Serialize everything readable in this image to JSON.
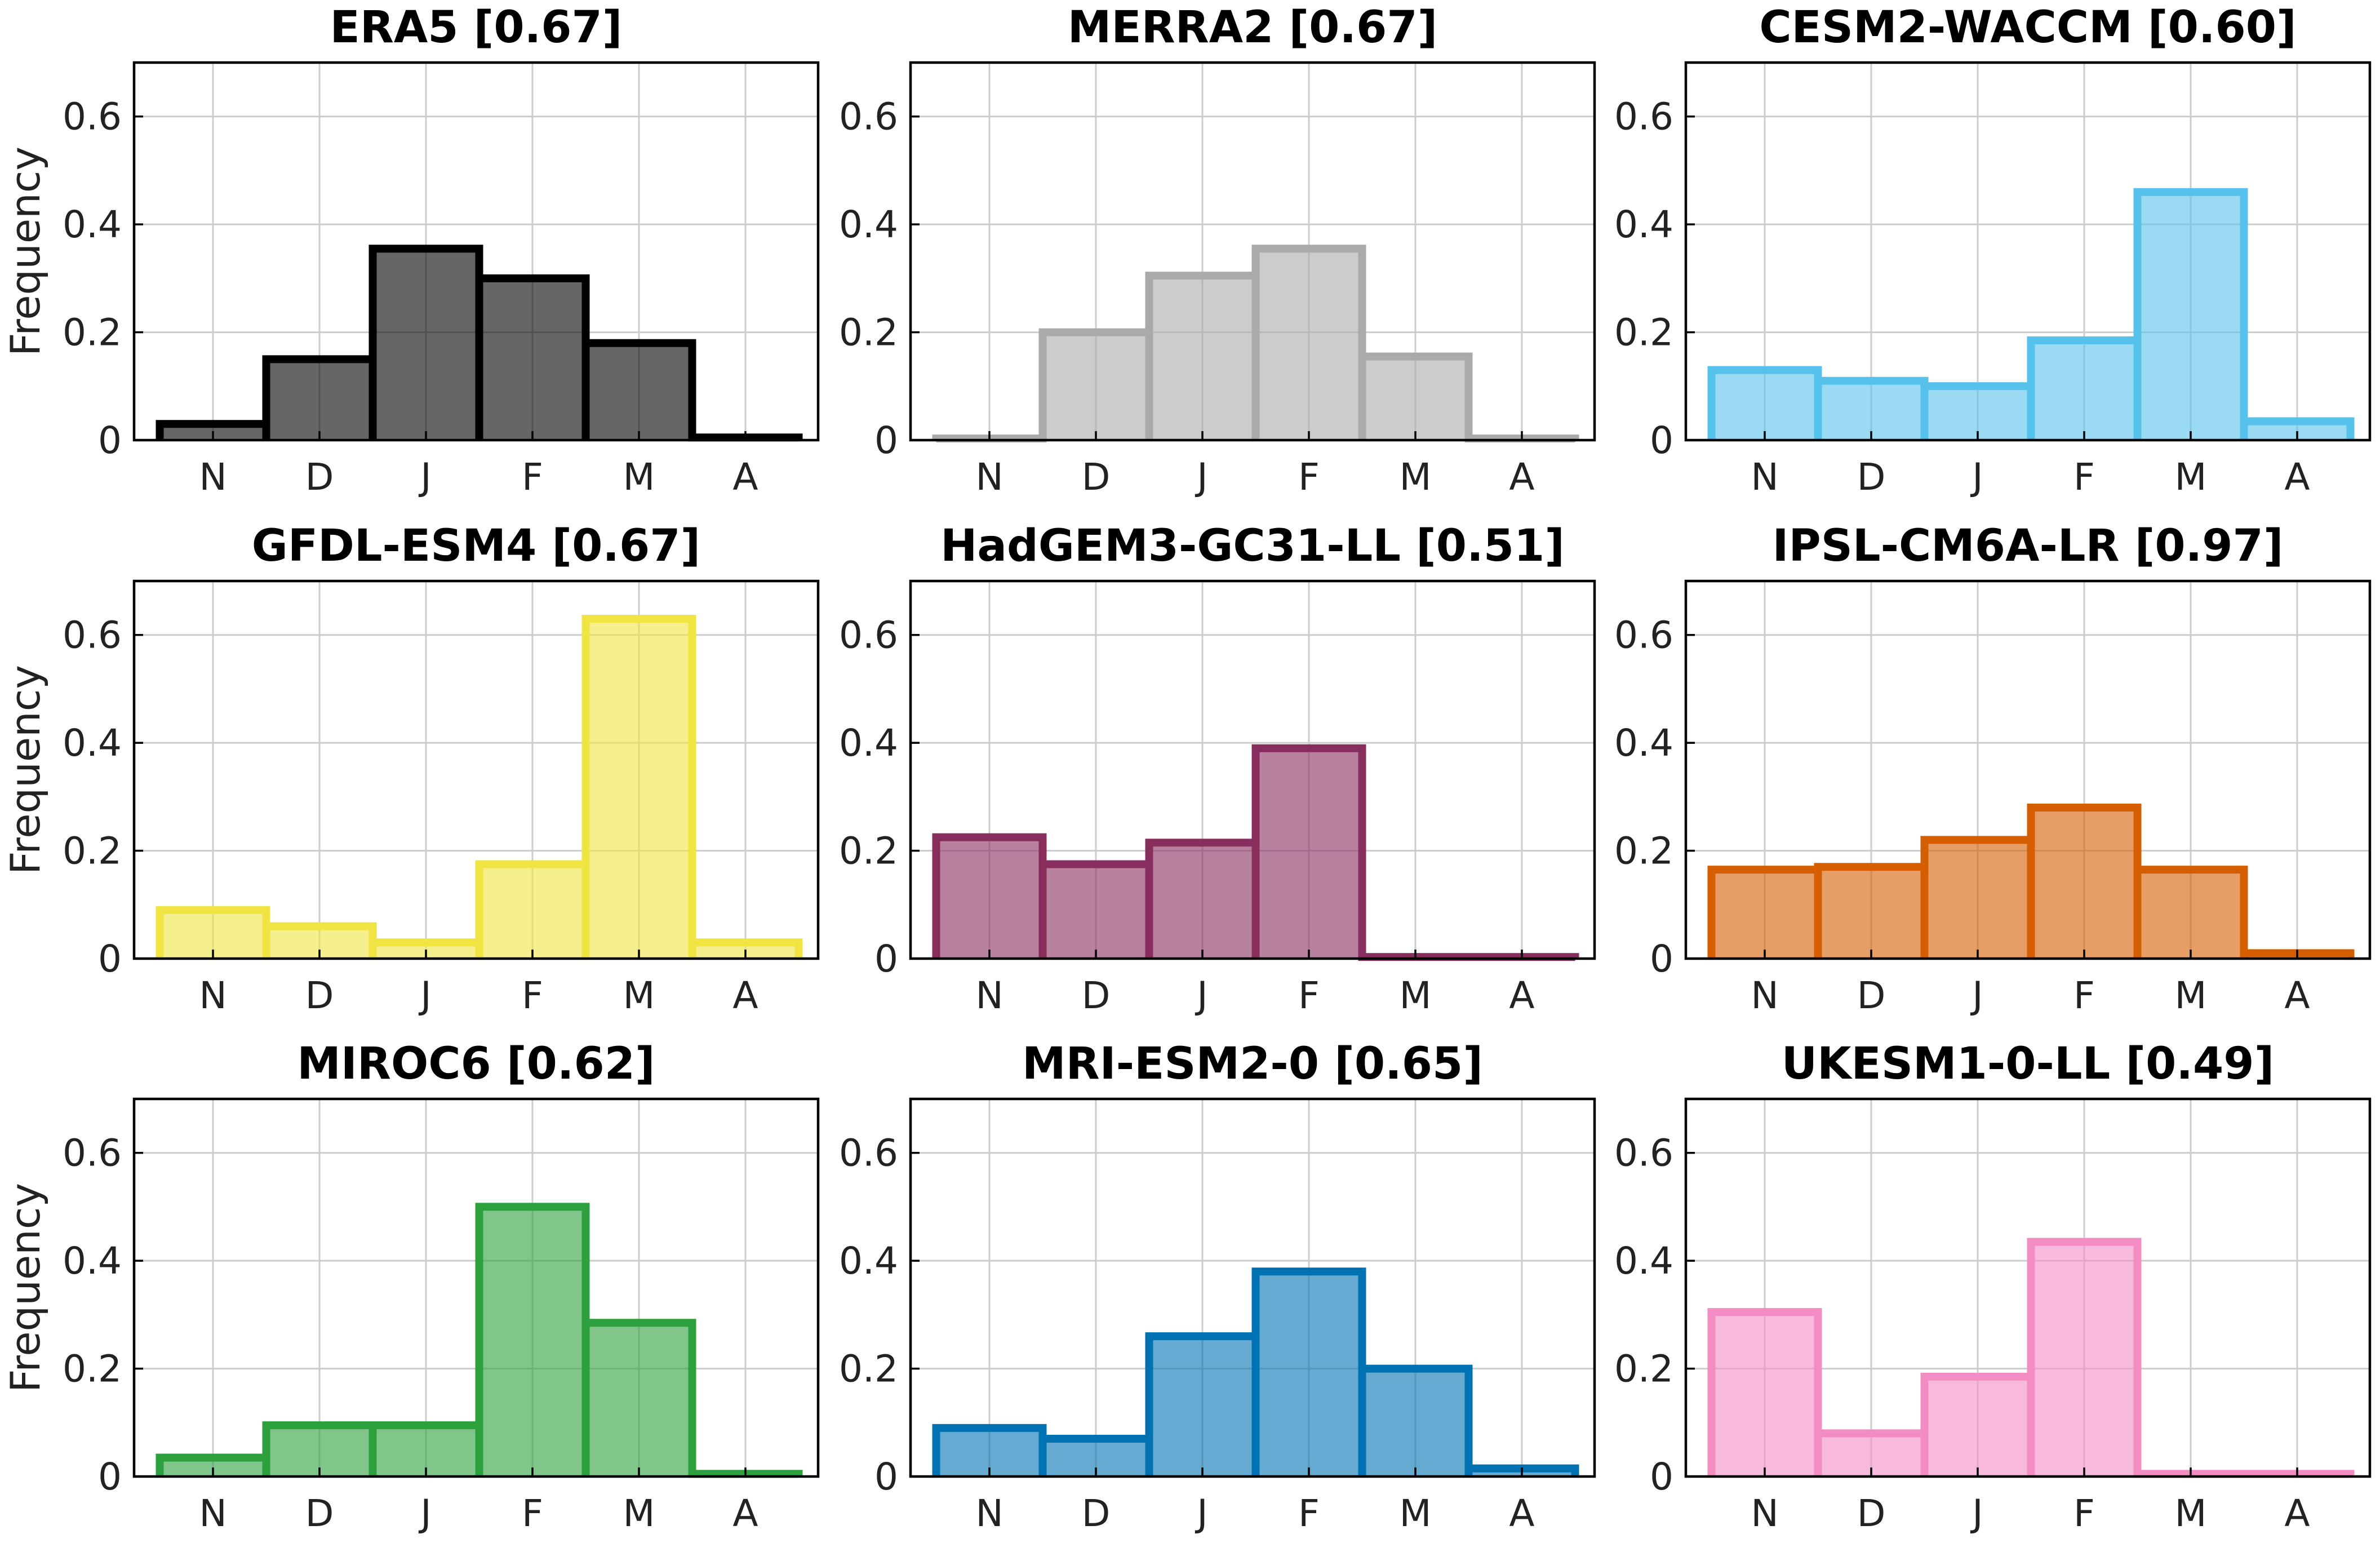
{
  "chart_data": [
    {
      "type": "bar",
      "title": "ERA5 [0.67]",
      "color": "#000000",
      "categories": [
        "N",
        "D",
        "J",
        "F",
        "M",
        "A"
      ],
      "values": [
        0.03,
        0.15,
        0.355,
        0.3,
        0.18,
        0.005
      ],
      "ylabel": "Frequency",
      "ylim": [
        0,
        0.7
      ],
      "yticks": [
        "0",
        "0.2",
        "0.4",
        "0.6"
      ],
      "grid": true
    },
    {
      "type": "bar",
      "title": "MERRA2 [0.67]",
      "color": "#aaaaaa",
      "categories": [
        "N",
        "D",
        "J",
        "F",
        "M",
        "A"
      ],
      "values": [
        0.003,
        0.2,
        0.305,
        0.355,
        0.155,
        0.003
      ],
      "ylabel": "",
      "ylim": [
        0,
        0.7
      ],
      "yticks": [
        "0",
        "0.2",
        "0.4",
        "0.6"
      ],
      "grid": true
    },
    {
      "type": "bar",
      "title": "CESM2-WACCM [0.60]",
      "color": "#56c1ea",
      "categories": [
        "N",
        "D",
        "J",
        "F",
        "M",
        "A"
      ],
      "values": [
        0.13,
        0.11,
        0.1,
        0.185,
        0.46,
        0.035
      ],
      "ylabel": "",
      "ylim": [
        0,
        0.7
      ],
      "yticks": [
        "0",
        "0.2",
        "0.4",
        "0.6"
      ],
      "grid": true
    },
    {
      "type": "bar",
      "title": "GFDL-ESM4 [0.67]",
      "color": "#f0e442",
      "categories": [
        "N",
        "D",
        "J",
        "F",
        "M",
        "A"
      ],
      "values": [
        0.09,
        0.06,
        0.03,
        0.175,
        0.63,
        0.03
      ],
      "ylabel": "Frequency",
      "ylim": [
        0,
        0.7
      ],
      "yticks": [
        "0",
        "0.2",
        "0.4",
        "0.6"
      ],
      "grid": true
    },
    {
      "type": "bar",
      "title": "HadGEM3-GC31-LL [0.51]",
      "color": "#882e5f",
      "categories": [
        "N",
        "D",
        "J",
        "F",
        "M",
        "A"
      ],
      "values": [
        0.225,
        0.175,
        0.215,
        0.39,
        0.003,
        0.003
      ],
      "ylabel": "",
      "ylim": [
        0,
        0.7
      ],
      "yticks": [
        "0",
        "0.2",
        "0.4",
        "0.6"
      ],
      "grid": true
    },
    {
      "type": "bar",
      "title": "IPSL-CM6A-LR [0.97]",
      "color": "#d55e00",
      "categories": [
        "N",
        "D",
        "J",
        "F",
        "M",
        "A"
      ],
      "values": [
        0.165,
        0.17,
        0.22,
        0.28,
        0.165,
        0.01
      ],
      "ylabel": "",
      "ylim": [
        0,
        0.7
      ],
      "yticks": [
        "0",
        "0.2",
        "0.4",
        "0.6"
      ],
      "grid": true
    },
    {
      "type": "bar",
      "title": "MIROC6 [0.62]",
      "color": "#2ca03c",
      "categories": [
        "N",
        "D",
        "J",
        "F",
        "M",
        "A"
      ],
      "values": [
        0.035,
        0.095,
        0.095,
        0.5,
        0.285,
        0.005
      ],
      "ylabel": "Frequency",
      "ylim": [
        0,
        0.7
      ],
      "yticks": [
        "0",
        "0.2",
        "0.4",
        "0.6"
      ],
      "grid": true
    },
    {
      "type": "bar",
      "title": "MRI-ESM2-0 [0.65]",
      "color": "#0072b2",
      "categories": [
        "N",
        "D",
        "J",
        "F",
        "M",
        "A"
      ],
      "values": [
        0.09,
        0.07,
        0.26,
        0.38,
        0.2,
        0.015
      ],
      "ylabel": "",
      "ylim": [
        0,
        0.7
      ],
      "yticks": [
        "0",
        "0.2",
        "0.4",
        "0.6"
      ],
      "grid": true
    },
    {
      "type": "bar",
      "title": "UKESM1-0-LL [0.49]",
      "color": "#f48cc4",
      "categories": [
        "N",
        "D",
        "J",
        "F",
        "M",
        "A"
      ],
      "values": [
        0.305,
        0.08,
        0.185,
        0.435,
        0.005,
        0.005
      ],
      "ylabel": "",
      "ylim": [
        0,
        0.7
      ],
      "yticks": [
        "0",
        "0.2",
        "0.4",
        "0.6"
      ],
      "grid": true
    }
  ]
}
